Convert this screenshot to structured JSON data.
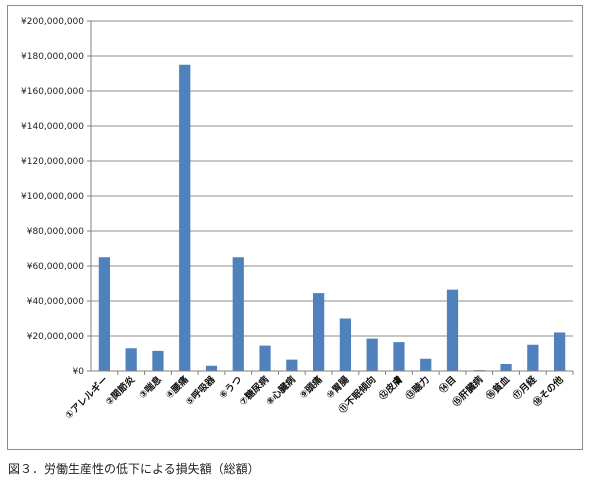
{
  "caption": "図３．労働生産性の低下による損失額（総額）",
  "chart_data": {
    "type": "bar",
    "title": "",
    "xlabel": "",
    "ylabel": "",
    "ylim": [
      0,
      200000000
    ],
    "yticks": [
      "¥0",
      "¥20,000,000",
      "¥40,000,000",
      "¥60,000,000",
      "¥80,000,000",
      "¥100,000,000",
      "¥120,000,000",
      "¥140,000,000",
      "¥160,000,000",
      "¥180,000,000",
      "¥200,000,000"
    ],
    "grid": true,
    "legend": "none",
    "bar_color": "#4f81bd",
    "categories": [
      "①アレルギー",
      "②関節炎",
      "③喘息",
      "④腰痛",
      "⑤呼吸器",
      "⑥うつ",
      "⑦糖尿病",
      "⑧心臓病",
      "⑨頭痛",
      "⑩胃腸",
      "⑪不眠傾向",
      "⑫皮膚",
      "⑬聴力",
      "⑭目",
      "⑮肝臓病",
      "⑯貧血",
      "⑰月経",
      "⑱その他"
    ],
    "values": [
      65000000,
      13000000,
      11500000,
      175000000,
      3000000,
      65000000,
      14500000,
      6500000,
      44500000,
      30000000,
      18500000,
      16500000,
      7000000,
      46500000,
      500000,
      4000000,
      15000000,
      22000000
    ]
  }
}
